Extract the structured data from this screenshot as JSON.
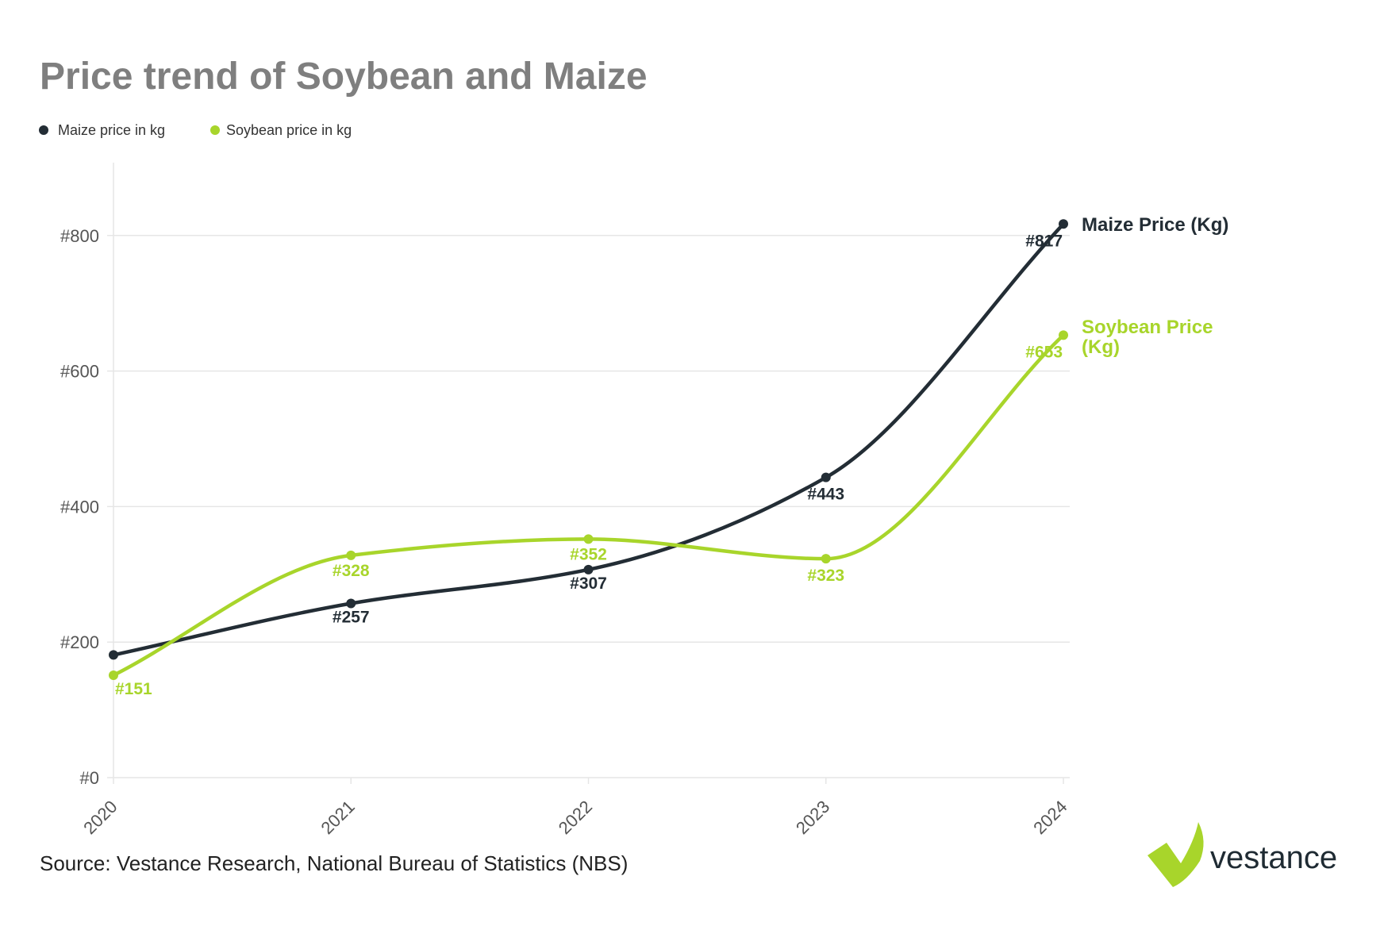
{
  "colors": {
    "maize": "#232d35",
    "soybean": "#a8d52b",
    "grid": "#e6e6e6",
    "title": "#7f7f7f"
  },
  "chart_data": {
    "type": "line",
    "title": "Price trend of Soybean and Maize",
    "x": [
      "2020",
      "2021",
      "2022",
      "2023",
      "2024"
    ],
    "ylim": [
      0,
      900
    ],
    "yticks": [
      0,
      200,
      400,
      600,
      800
    ],
    "ytick_prefix": "#",
    "legend": [
      "Maize price in kg",
      "Soybean price in kg"
    ],
    "series": [
      {
        "name": "Maize price in kg",
        "end_label": "Maize Price (Kg)",
        "values": [
          181,
          257,
          307,
          443,
          817
        ],
        "labels": [
          "",
          "#257",
          "#307",
          "#443",
          "#817"
        ]
      },
      {
        "name": "Soybean price in kg",
        "end_label": "Soybean Price (Kg)",
        "values": [
          151,
          328,
          352,
          323,
          653
        ],
        "labels": [
          "#151",
          "#328",
          "#352",
          "#323",
          "#653"
        ]
      }
    ]
  },
  "source": "Source: Vestance Research, National Bureau of Statistics (NBS)",
  "brand": {
    "name": "vestance",
    "logo_icon": "check-mark-icon"
  }
}
